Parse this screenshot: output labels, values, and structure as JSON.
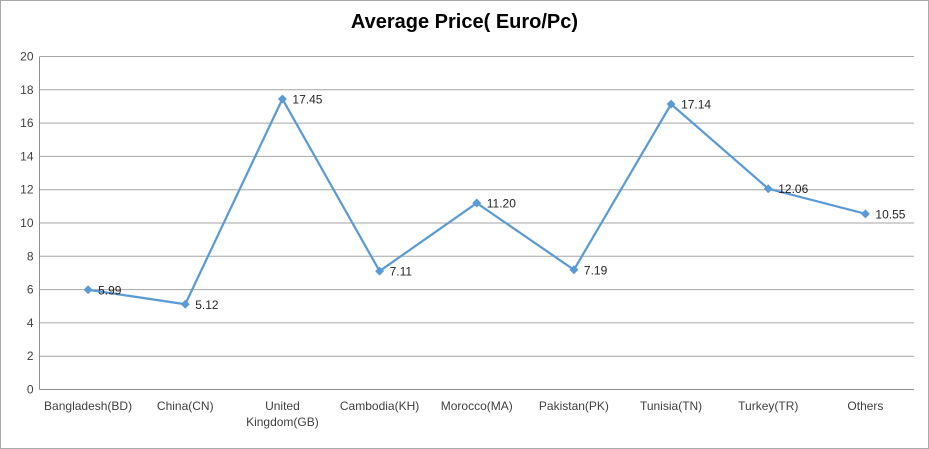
{
  "chart_data": {
    "type": "line",
    "title": "Average Price( Euro/Pc)",
    "categories": [
      "Bangladesh(BD)",
      "China(CN)",
      "United Kingdom(GB)",
      "Cambodia(KH)",
      "Morocco(MA)",
      "Pakistan(PK)",
      "Tunisia(TN)",
      "Turkey(TR)",
      "Others"
    ],
    "series": [
      {
        "name": "Average Price (Euro/Pc)",
        "values": [
          5.99,
          5.12,
          17.45,
          7.11,
          11.2,
          7.19,
          17.14,
          12.06,
          10.55
        ],
        "data_labels": [
          "5.99",
          "5.12",
          "17.45",
          "7.11",
          "11.20",
          "7.19",
          "17.14",
          "12.06",
          "10.55"
        ]
      }
    ],
    "ylim": [
      0,
      20
    ],
    "yticks": [
      0,
      2,
      4,
      6,
      8,
      10,
      12,
      14,
      16,
      18,
      20
    ],
    "grid": true,
    "legend_position": "none",
    "marker_shape": "diamond",
    "colors": {
      "line": "#5b9bd5",
      "marker": "#5b9bd5",
      "gridline": "#a6a6a6",
      "axis": "#8e8e8e",
      "tick_text": "#404040",
      "data_label_text": "#262626",
      "title_text": "#000000",
      "frame_border": "#a9a9a9",
      "background": "#ffffff"
    }
  }
}
